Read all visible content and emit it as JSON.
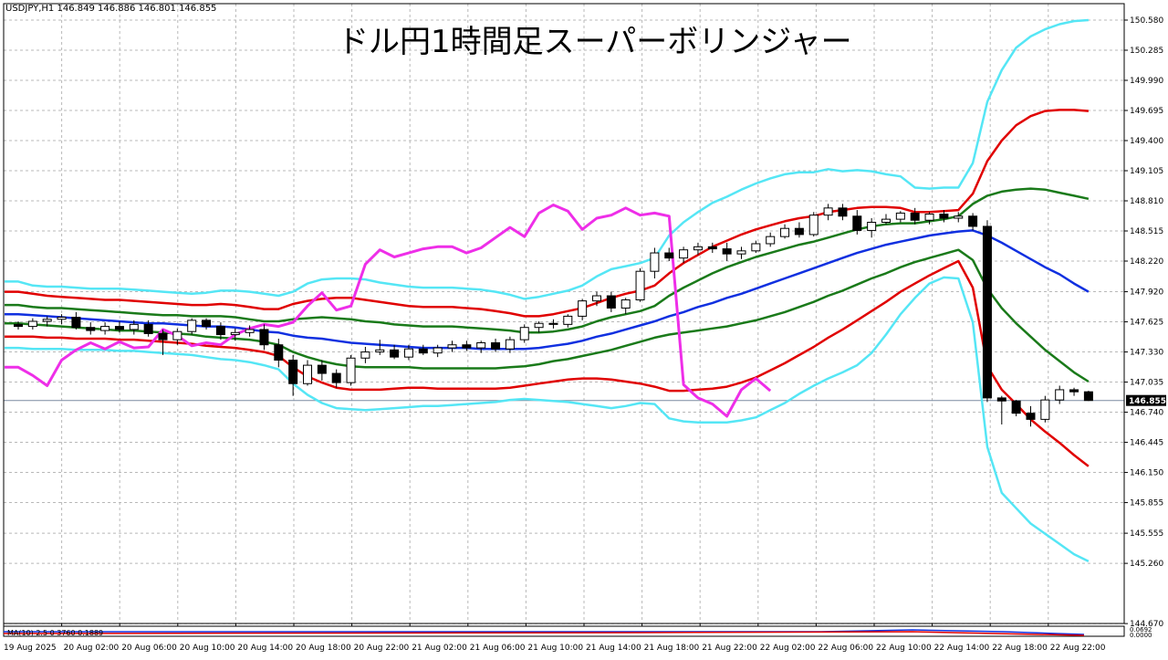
{
  "symbol_info": "USDJPY,H1  146.849 146.886 146.801 146.855",
  "subwindow_info": "MA(10) 2.5 0 3760 0.1889",
  "colors": {
    "grid": "#b8b8b8",
    "upper2": "#55e6f5",
    "upper1": "#e00000",
    "upper05": "#1a7a1a",
    "middle": "#1030e0",
    "chikou": "#ee2ee8",
    "candle_bull": "#ffffff",
    "candle_bear": "#000000",
    "price_line": "#7a8aa0"
  },
  "chart_data": {
    "type": "candlestick",
    "title": "ドル円1時間足スーパーボリンジャー",
    "price_axis": {
      "ticks": [
        "150.580",
        "150.285",
        "149.990",
        "149.695",
        "149.400",
        "149.105",
        "148.810",
        "148.515",
        "148.220",
        "147.920",
        "147.625",
        "147.330",
        "147.035",
        "146.740",
        "146.445",
        "146.150",
        "145.855",
        "145.555",
        "145.260",
        "144.670"
      ],
      "range": [
        144.56,
        150.7
      ]
    },
    "time_axis": {
      "labels": [
        "19 Aug 2025",
        "20 Aug 02:00",
        "20 Aug 06:00",
        "20 Aug 10:00",
        "20 Aug 14:00",
        "20 Aug 18:00",
        "20 Aug 22:00",
        "21 Aug 02:00",
        "21 Aug 06:00",
        "21 Aug 10:00",
        "21 Aug 14:00",
        "21 Aug 18:00",
        "21 Aug 22:00",
        "22 Aug 02:00",
        "22 Aug 06:00",
        "22 Aug 10:00",
        "22 Aug 14:00",
        "22 Aug 18:00",
        "22 Aug 22:00"
      ]
    },
    "current_price": "146.855",
    "sub_window_labels": [
      "0.0692",
      "0.0000"
    ],
    "candles": [
      [
        147.6,
        147.63,
        147.55,
        147.58
      ],
      [
        147.58,
        147.66,
        147.55,
        147.63
      ],
      [
        147.63,
        147.68,
        147.58,
        147.65
      ],
      [
        147.65,
        147.7,
        147.6,
        147.67
      ],
      [
        147.67,
        147.72,
        147.55,
        147.57
      ],
      [
        147.57,
        147.62,
        147.5,
        147.54
      ],
      [
        147.54,
        147.62,
        147.5,
        147.58
      ],
      [
        147.58,
        147.63,
        147.52,
        147.55
      ],
      [
        147.55,
        147.64,
        147.5,
        147.6
      ],
      [
        147.6,
        147.64,
        147.48,
        147.51
      ],
      [
        147.51,
        147.55,
        147.3,
        147.45
      ],
      [
        147.45,
        147.56,
        147.4,
        147.53
      ],
      [
        147.53,
        147.66,
        147.5,
        147.64
      ],
      [
        147.64,
        147.66,
        147.55,
        147.58
      ],
      [
        147.58,
        147.62,
        147.45,
        147.5
      ],
      [
        147.5,
        147.56,
        147.44,
        147.52
      ],
      [
        147.52,
        147.59,
        147.48,
        147.55
      ],
      [
        147.55,
        147.6,
        147.35,
        147.4
      ],
      [
        147.4,
        147.46,
        147.18,
        147.25
      ],
      [
        147.25,
        147.3,
        146.9,
        147.02
      ],
      [
        147.02,
        147.25,
        147.0,
        147.2
      ],
      [
        147.2,
        147.25,
        147.05,
        147.12
      ],
      [
        147.12,
        147.16,
        146.98,
        147.03
      ],
      [
        147.03,
        147.3,
        147.0,
        147.27
      ],
      [
        147.27,
        147.38,
        147.22,
        147.33
      ],
      [
        147.33,
        147.45,
        147.3,
        147.35
      ],
      [
        147.35,
        147.4,
        147.26,
        147.28
      ],
      [
        147.28,
        147.4,
        147.25,
        147.36
      ],
      [
        147.36,
        147.4,
        147.3,
        147.32
      ],
      [
        147.32,
        147.4,
        147.28,
        147.37
      ],
      [
        147.37,
        147.44,
        147.33,
        147.4
      ],
      [
        147.4,
        147.44,
        147.34,
        147.37
      ],
      [
        147.37,
        147.44,
        147.32,
        147.42
      ],
      [
        147.42,
        147.46,
        147.33,
        147.36
      ],
      [
        147.36,
        147.48,
        147.32,
        147.45
      ],
      [
        147.45,
        147.6,
        147.42,
        147.57
      ],
      [
        147.57,
        147.63,
        147.52,
        147.61
      ],
      [
        147.61,
        147.65,
        147.56,
        147.6
      ],
      [
        147.6,
        147.7,
        147.57,
        147.68
      ],
      [
        147.68,
        147.85,
        147.64,
        147.83
      ],
      [
        147.83,
        147.92,
        147.78,
        147.88
      ],
      [
        147.88,
        147.92,
        147.72,
        147.76
      ],
      [
        147.76,
        147.86,
        147.7,
        147.84
      ],
      [
        147.84,
        148.15,
        147.82,
        148.12
      ],
      [
        148.12,
        148.35,
        148.05,
        148.3
      ],
      [
        148.3,
        148.35,
        148.22,
        148.25
      ],
      [
        148.25,
        148.36,
        148.2,
        148.33
      ],
      [
        148.33,
        148.4,
        148.28,
        148.36
      ],
      [
        148.36,
        148.4,
        148.3,
        148.34
      ],
      [
        148.34,
        148.4,
        148.22,
        148.29
      ],
      [
        148.29,
        148.36,
        148.24,
        148.32
      ],
      [
        148.32,
        148.42,
        148.3,
        148.39
      ],
      [
        148.39,
        148.5,
        148.36,
        148.46
      ],
      [
        148.46,
        148.58,
        148.44,
        148.54
      ],
      [
        148.54,
        148.6,
        148.45,
        148.48
      ],
      [
        148.48,
        148.7,
        148.46,
        148.67
      ],
      [
        148.67,
        148.78,
        148.62,
        148.74
      ],
      [
        148.74,
        148.78,
        148.62,
        148.66
      ],
      [
        148.66,
        148.72,
        148.48,
        148.52
      ],
      [
        148.52,
        148.64,
        148.45,
        148.6
      ],
      [
        148.6,
        148.68,
        148.58,
        148.63
      ],
      [
        148.63,
        148.71,
        148.6,
        148.69
      ],
      [
        148.69,
        148.74,
        148.58,
        148.62
      ],
      [
        148.62,
        148.7,
        148.58,
        148.68
      ],
      [
        148.68,
        148.72,
        148.6,
        148.64
      ],
      [
        148.64,
        148.7,
        148.6,
        148.66
      ],
      [
        148.66,
        148.69,
        148.52,
        148.56
      ],
      [
        148.56,
        148.62,
        146.84,
        146.88
      ],
      [
        146.88,
        146.9,
        146.62,
        146.85
      ],
      [
        146.85,
        146.86,
        146.7,
        146.73
      ],
      [
        146.73,
        146.8,
        146.6,
        146.67
      ],
      [
        146.67,
        146.9,
        146.64,
        146.86
      ],
      [
        146.86,
        147.0,
        146.82,
        146.96
      ],
      [
        146.96,
        146.98,
        146.9,
        146.94
      ],
      [
        146.94,
        146.95,
        146.85,
        146.855
      ]
    ],
    "series": [
      {
        "key": "upper2",
        "values": [
          148.02,
          147.98,
          147.97,
          147.97,
          147.96,
          147.95,
          147.95,
          147.95,
          147.94,
          147.93,
          147.92,
          147.91,
          147.9,
          147.91,
          147.93,
          147.93,
          147.92,
          147.9,
          147.88,
          147.92,
          148.0,
          148.04,
          148.05,
          148.05,
          148.04,
          148.01,
          147.99,
          147.97,
          147.96,
          147.96,
          147.96,
          147.95,
          147.94,
          147.92,
          147.89,
          147.85,
          147.87,
          147.9,
          147.93,
          147.98,
          148.07,
          148.14,
          148.17,
          148.2,
          148.25,
          148.47,
          148.6,
          148.7,
          148.79,
          148.85,
          148.92,
          148.98,
          149.03,
          149.07,
          149.09,
          149.09,
          149.12,
          149.1,
          149.11,
          149.1,
          149.07,
          149.05,
          148.94,
          148.93,
          148.94,
          148.94,
          149.18,
          149.78,
          150.09,
          150.31,
          150.42,
          150.49,
          150.54,
          150.57,
          150.58
        ]
      },
      {
        "key": "upper1",
        "values": [
          147.92,
          147.9,
          147.88,
          147.87,
          147.86,
          147.85,
          147.84,
          147.84,
          147.83,
          147.82,
          147.81,
          147.8,
          147.79,
          147.79,
          147.8,
          147.79,
          147.77,
          147.75,
          147.75,
          147.8,
          147.83,
          147.85,
          147.86,
          147.86,
          147.84,
          147.82,
          147.8,
          147.78,
          147.77,
          147.77,
          147.77,
          147.76,
          147.75,
          147.73,
          147.71,
          147.68,
          147.68,
          147.7,
          147.73,
          147.76,
          147.81,
          147.86,
          147.9,
          147.93,
          147.98,
          148.1,
          148.2,
          148.28,
          148.36,
          148.42,
          148.48,
          148.53,
          148.57,
          148.61,
          148.64,
          148.66,
          148.7,
          148.72,
          148.74,
          148.75,
          148.75,
          148.74,
          148.7,
          148.7,
          148.71,
          148.72,
          148.88,
          149.2,
          149.4,
          149.55,
          149.64,
          149.69,
          149.7,
          149.7,
          149.69
        ]
      },
      {
        "key": "upper05",
        "values": [
          147.79,
          147.77,
          147.76,
          147.76,
          147.75,
          147.74,
          147.73,
          147.72,
          147.71,
          147.7,
          147.69,
          147.69,
          147.68,
          147.68,
          147.68,
          147.67,
          147.65,
          147.63,
          147.63,
          147.65,
          147.66,
          147.67,
          147.66,
          147.65,
          147.63,
          147.62,
          147.6,
          147.59,
          147.58,
          147.58,
          147.58,
          147.57,
          147.56,
          147.55,
          147.54,
          147.52,
          147.52,
          147.53,
          147.55,
          147.58,
          147.63,
          147.67,
          147.7,
          147.73,
          147.78,
          147.88,
          147.96,
          148.03,
          148.1,
          148.16,
          148.21,
          148.26,
          148.3,
          148.34,
          148.38,
          148.41,
          148.45,
          148.49,
          148.53,
          148.56,
          148.58,
          148.59,
          148.59,
          148.61,
          148.63,
          148.66,
          148.78,
          148.86,
          148.9,
          148.92,
          148.93,
          148.92,
          148.89,
          148.86,
          148.83
        ]
      },
      {
        "key": "middle",
        "values": [
          147.7,
          147.69,
          147.68,
          147.67,
          147.66,
          147.65,
          147.64,
          147.63,
          147.62,
          147.61,
          147.61,
          147.6,
          147.59,
          147.58,
          147.58,
          147.57,
          147.55,
          147.53,
          147.52,
          147.49,
          147.47,
          147.46,
          147.44,
          147.42,
          147.41,
          147.4,
          147.39,
          147.38,
          147.37,
          147.37,
          147.37,
          147.37,
          147.36,
          147.36,
          147.36,
          147.36,
          147.37,
          147.39,
          147.41,
          147.44,
          147.48,
          147.51,
          147.55,
          147.59,
          147.63,
          147.68,
          147.72,
          147.77,
          147.81,
          147.86,
          147.9,
          147.95,
          148.0,
          148.05,
          148.1,
          148.15,
          148.2,
          148.25,
          148.3,
          148.34,
          148.38,
          148.41,
          148.44,
          148.47,
          148.49,
          148.51,
          148.52,
          148.47,
          148.4,
          148.32,
          148.24,
          148.16,
          148.09,
          148.0,
          147.92
        ]
      },
      {
        "key": "lower05",
        "values": [
          147.61,
          147.6,
          147.59,
          147.58,
          147.57,
          147.56,
          147.55,
          147.54,
          147.54,
          147.53,
          147.52,
          147.51,
          147.5,
          147.48,
          147.47,
          147.46,
          147.45,
          147.43,
          147.4,
          147.33,
          147.28,
          147.24,
          147.21,
          147.19,
          147.18,
          147.18,
          147.18,
          147.18,
          147.17,
          147.17,
          147.17,
          147.17,
          147.17,
          147.17,
          147.18,
          147.19,
          147.21,
          147.24,
          147.26,
          147.29,
          147.32,
          147.35,
          147.39,
          147.43,
          147.47,
          147.5,
          147.52,
          147.54,
          147.56,
          147.58,
          147.61,
          147.64,
          147.68,
          147.72,
          147.77,
          147.82,
          147.88,
          147.93,
          147.99,
          148.05,
          148.1,
          148.16,
          148.21,
          148.25,
          148.29,
          148.33,
          148.23,
          147.95,
          147.76,
          147.61,
          147.48,
          147.35,
          147.24,
          147.13,
          147.04
        ]
      },
      {
        "key": "lower1",
        "values": [
          147.48,
          147.48,
          147.47,
          147.47,
          147.46,
          147.46,
          147.46,
          147.45,
          147.45,
          147.44,
          147.43,
          147.42,
          147.41,
          147.39,
          147.38,
          147.37,
          147.35,
          147.33,
          147.29,
          147.18,
          147.09,
          147.03,
          146.98,
          146.96,
          146.96,
          146.96,
          146.97,
          146.98,
          146.98,
          146.97,
          146.97,
          146.97,
          146.97,
          146.97,
          146.98,
          147.0,
          147.02,
          147.04,
          147.06,
          147.07,
          147.07,
          147.06,
          147.04,
          147.02,
          146.99,
          146.95,
          146.95,
          146.96,
          146.97,
          146.99,
          147.03,
          147.08,
          147.15,
          147.22,
          147.3,
          147.38,
          147.47,
          147.55,
          147.64,
          147.73,
          147.82,
          147.92,
          148.0,
          148.08,
          148.15,
          148.22,
          147.96,
          147.19,
          146.96,
          146.82,
          146.67,
          146.55,
          146.44,
          146.32,
          146.21
        ]
      },
      {
        "key": "lower2",
        "values": [
          147.37,
          147.36,
          147.36,
          147.36,
          147.35,
          147.35,
          147.35,
          147.34,
          147.34,
          147.33,
          147.32,
          147.31,
          147.3,
          147.28,
          147.26,
          147.25,
          147.23,
          147.2,
          147.16,
          147.02,
          146.91,
          146.83,
          146.78,
          146.77,
          146.76,
          146.77,
          146.78,
          146.79,
          146.8,
          146.8,
          146.81,
          146.82,
          146.83,
          146.84,
          146.86,
          146.87,
          146.86,
          146.85,
          146.84,
          146.82,
          146.8,
          146.78,
          146.8,
          146.83,
          146.82,
          146.68,
          146.65,
          146.64,
          146.64,
          146.64,
          146.66,
          146.69,
          146.76,
          146.83,
          146.92,
          147.0,
          147.07,
          147.13,
          147.2,
          147.32,
          147.5,
          147.7,
          147.86,
          148.0,
          148.06,
          148.05,
          147.62,
          146.4,
          145.95,
          145.8,
          145.65,
          145.55,
          145.45,
          145.35,
          145.28
        ]
      },
      {
        "key": "chikou",
        "values": [
          147.18,
          147.1,
          147.0,
          147.25,
          147.35,
          147.42,
          147.36,
          147.43,
          147.37,
          147.38,
          147.55,
          147.49,
          147.39,
          147.42,
          147.4,
          147.5,
          147.56,
          147.6,
          147.58,
          147.62,
          147.78,
          147.91,
          147.74,
          147.78,
          148.19,
          148.33,
          148.26,
          148.3,
          148.34,
          148.36,
          148.36,
          148.3,
          148.35,
          148.45,
          148.55,
          148.46,
          148.69,
          148.77,
          148.71,
          148.53,
          148.64,
          148.67,
          148.74,
          148.67,
          148.69,
          148.66,
          147.01,
          146.88,
          146.82,
          146.7,
          146.96,
          147.07,
          146.95
        ]
      }
    ]
  }
}
